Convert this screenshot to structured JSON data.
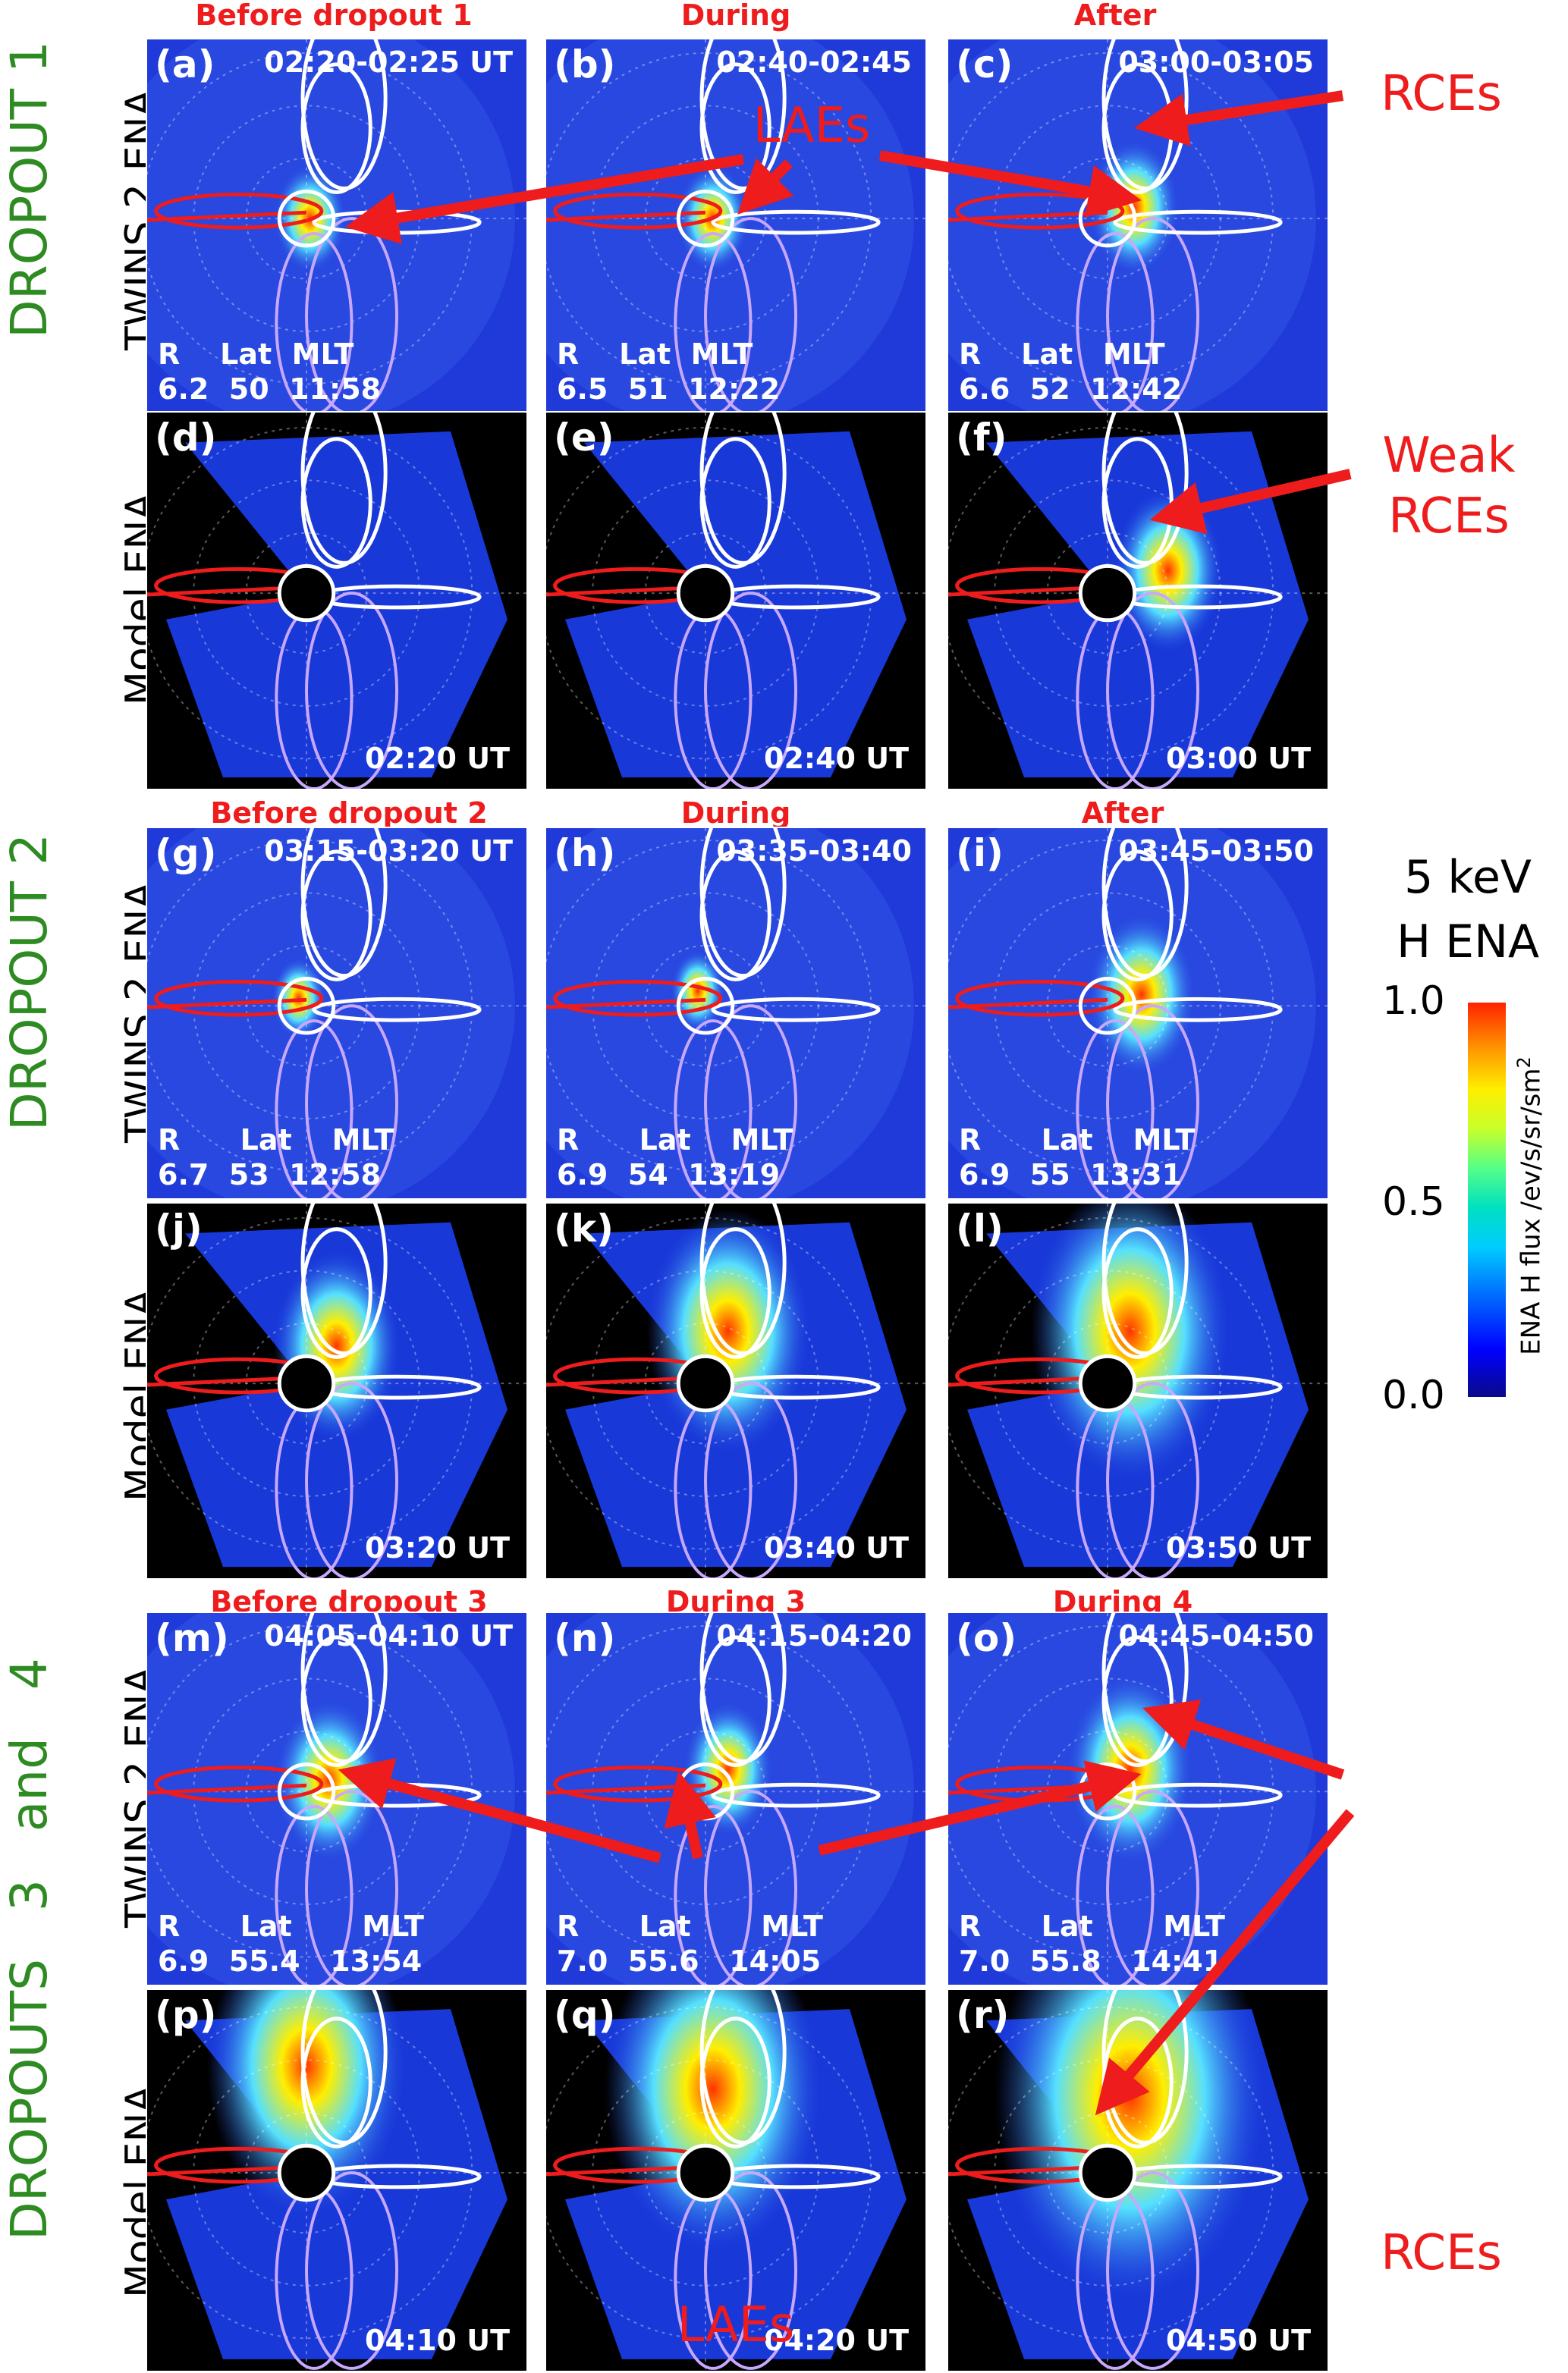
{
  "colors": {
    "accent_red": "#ee1c1c",
    "group_green": "#2e8b22",
    "bg_blue": "#1f3ad8"
  },
  "groups": [
    "DROPOUT 1",
    "DROPOUT 2",
    "DROPOUTS   3   and   4"
  ],
  "row_labels": {
    "twins": "TWINS 2 ENA",
    "model": "Model ENA"
  },
  "headers": {
    "a": "Before dropout 1",
    "b": "During",
    "c": "After",
    "g": "Before dropout 2",
    "h": "During",
    "i": "After",
    "m": "Before dropout 3",
    "n": "During 3",
    "o": "During 4"
  },
  "panels": {
    "a": {
      "label": "(a)",
      "time": "02:20-02:25 UT",
      "info": "R    Lat  MLT\n6.2  50  11:58"
    },
    "b": {
      "label": "(b)",
      "time": "02:40-02:45",
      "info": "R    Lat  MLT\n6.5  51  12:22"
    },
    "c": {
      "label": "(c)",
      "time": "03:00-03:05",
      "info": "R    Lat   MLT\n6.6  52  12:42"
    },
    "d": {
      "label": "(d)",
      "time": "02:20 UT"
    },
    "e": {
      "label": "(e)",
      "time": "02:40 UT"
    },
    "f": {
      "label": "(f)",
      "time": "03:00 UT"
    },
    "g": {
      "label": "(g)",
      "time": "03:15-03:20 UT",
      "info": "R      Lat    MLT\n6.7  53  12:58"
    },
    "h": {
      "label": "(h)",
      "time": "03:35-03:40",
      "info": "R      Lat    MLT\n6.9  54  13:19"
    },
    "i": {
      "label": "(i)",
      "time": "03:45-03:50",
      "info": "R      Lat    MLT\n6.9  55  13:31"
    },
    "j": {
      "label": "(j)",
      "time": "03:20 UT"
    },
    "k": {
      "label": "(k)",
      "time": "03:40 UT"
    },
    "l": {
      "label": "(l)",
      "time": "03:50 UT"
    },
    "m": {
      "label": "(m)",
      "time": "04:05-04:10 UT",
      "info": "R      Lat       MLT\n6.9  55.4   13:54"
    },
    "n": {
      "label": "(n)",
      "time": "04:15-04:20",
      "info": "R      Lat       MLT\n7.0  55.6   14:05"
    },
    "o": {
      "label": "(o)",
      "time": "04:45-04:50",
      "info": "R      Lat       MLT\n7.0  55.8   14:41"
    },
    "p": {
      "label": "(p)",
      "time": "04:10 UT"
    },
    "q": {
      "label": "(q)",
      "time": "04:20 UT"
    },
    "r": {
      "label": "(r)",
      "time": "04:50 UT"
    }
  },
  "annotations": {
    "rces_top": "RCEs",
    "laes_top": "LAEs",
    "weak_rces_1": "Weak",
    "weak_rces_2": "RCEs",
    "laes_bottom": "LAEs",
    "rces_bottom": "RCEs"
  },
  "colorbar": {
    "title_1": "5 keV",
    "title_2": "H ENA",
    "tick_max": "1.0",
    "tick_mid": "0.5",
    "tick_min": "0.0",
    "unit": "ENA H flux /ev/s/sr/sm",
    "unit_sup": "2"
  }
}
